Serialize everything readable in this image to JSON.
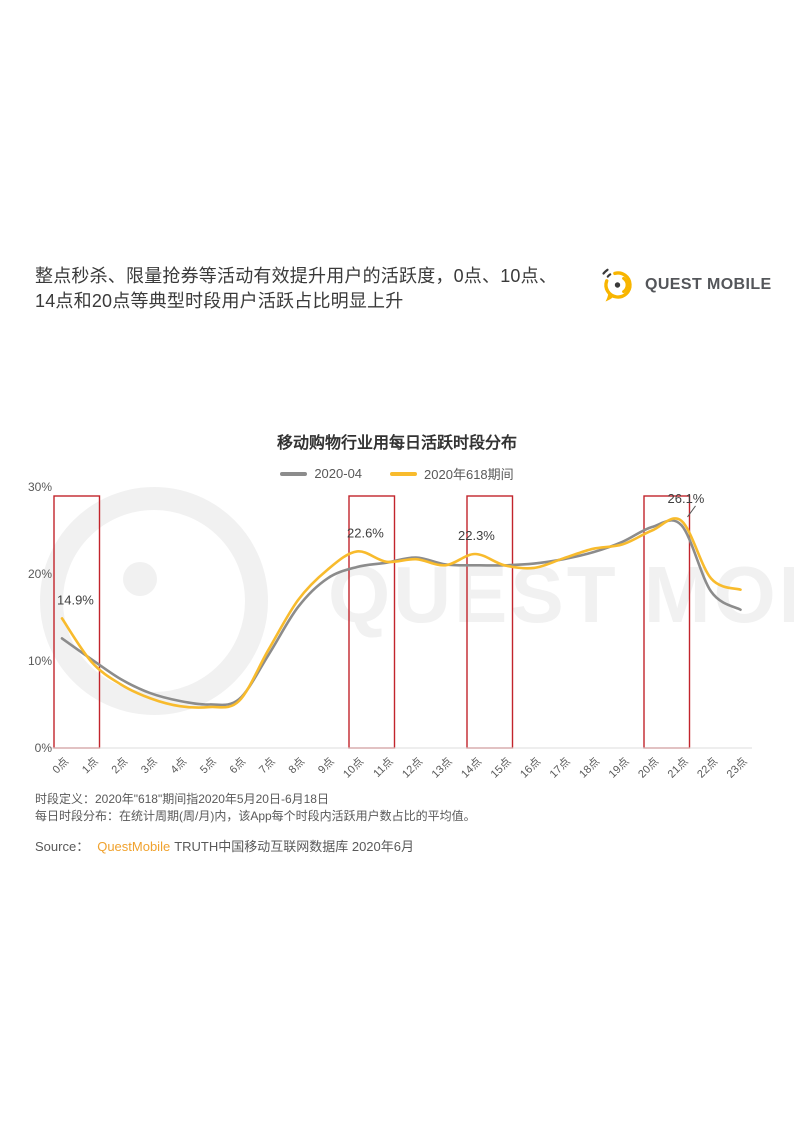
{
  "heading": {
    "line1": "整点秒杀、限量抢券等活动有效提升用户的活跃度，0点、10点、",
    "line2": "14点和20点等典型时段用户活跃占比明显上升"
  },
  "logo": {
    "text": "QUEST MOBILE",
    "icon": "questmobile-bubble-icon",
    "yellow": "#F8B500",
    "dark": "#54565a"
  },
  "watermark": {
    "text": "QUEST MOBILE"
  },
  "chart": {
    "title": "移动购物行业用每日活跃时段分布"
  },
  "chart_data": {
    "type": "line",
    "title": "移动购物行业用每日活跃时段分布",
    "categories": [
      "0点",
      "1点",
      "2点",
      "3点",
      "4点",
      "5点",
      "6点",
      "7点",
      "8点",
      "9点",
      "10点",
      "11点",
      "12点",
      "13点",
      "14点",
      "15点",
      "16点",
      "17点",
      "18点",
      "19点",
      "20点",
      "21点",
      "22点",
      "23点"
    ],
    "series": [
      {
        "name": "2020-04",
        "color": "#8c8c8c",
        "values": [
          12.6,
          10.2,
          7.9,
          6.3,
          5.4,
          5.0,
          5.6,
          10.7,
          16.2,
          19.5,
          20.8,
          21.3,
          21.9,
          21.1,
          21.0,
          21.0,
          21.2,
          21.7,
          22.5,
          23.7,
          25.4,
          25.6,
          18.0,
          15.9
        ]
      },
      {
        "name": "2020年618期间",
        "color": "#f8bb2d",
        "values": [
          14.9,
          9.9,
          7.3,
          5.7,
          4.8,
          4.7,
          5.4,
          11.3,
          17.0,
          20.5,
          22.6,
          21.4,
          21.7,
          21.0,
          22.3,
          21.0,
          20.7,
          21.8,
          22.9,
          23.4,
          25.0,
          26.1,
          19.5,
          18.2
        ]
      }
    ],
    "ylim": [
      0,
      30
    ],
    "yticks": [
      "0%",
      "10%",
      "20%",
      "30%"
    ],
    "xlabel": "",
    "ylabel": "",
    "grid": false,
    "legend_position": "top-center",
    "annotations": [
      {
        "text": "14.9%",
        "hour": 0,
        "series": "2020年618期间"
      },
      {
        "text": "22.6%",
        "hour": 10,
        "series": "2020年618期间"
      },
      {
        "text": "22.3%",
        "hour": 14,
        "series": "2020年618期间"
      },
      {
        "text": "26.1%",
        "hour": 21,
        "series": "2020年618期间"
      }
    ],
    "highlight_ranges": [
      [
        0,
        1
      ],
      [
        10,
        11
      ],
      [
        14,
        15
      ],
      [
        20,
        21
      ]
    ],
    "highlight_color": "#c2242c"
  },
  "notes": {
    "line1": "时段定义：2020年\"618\"期间指2020年5月20日-6月18日",
    "line2": "每日时段分布：在统计周期(周/月)内，该App每个时段内活跃用户数占比的平均值。"
  },
  "source": {
    "prefix": "Source：",
    "brand": "QuestMobile",
    "suffix": "TRUTH中国移动互联网数据库 2020年6月"
  }
}
